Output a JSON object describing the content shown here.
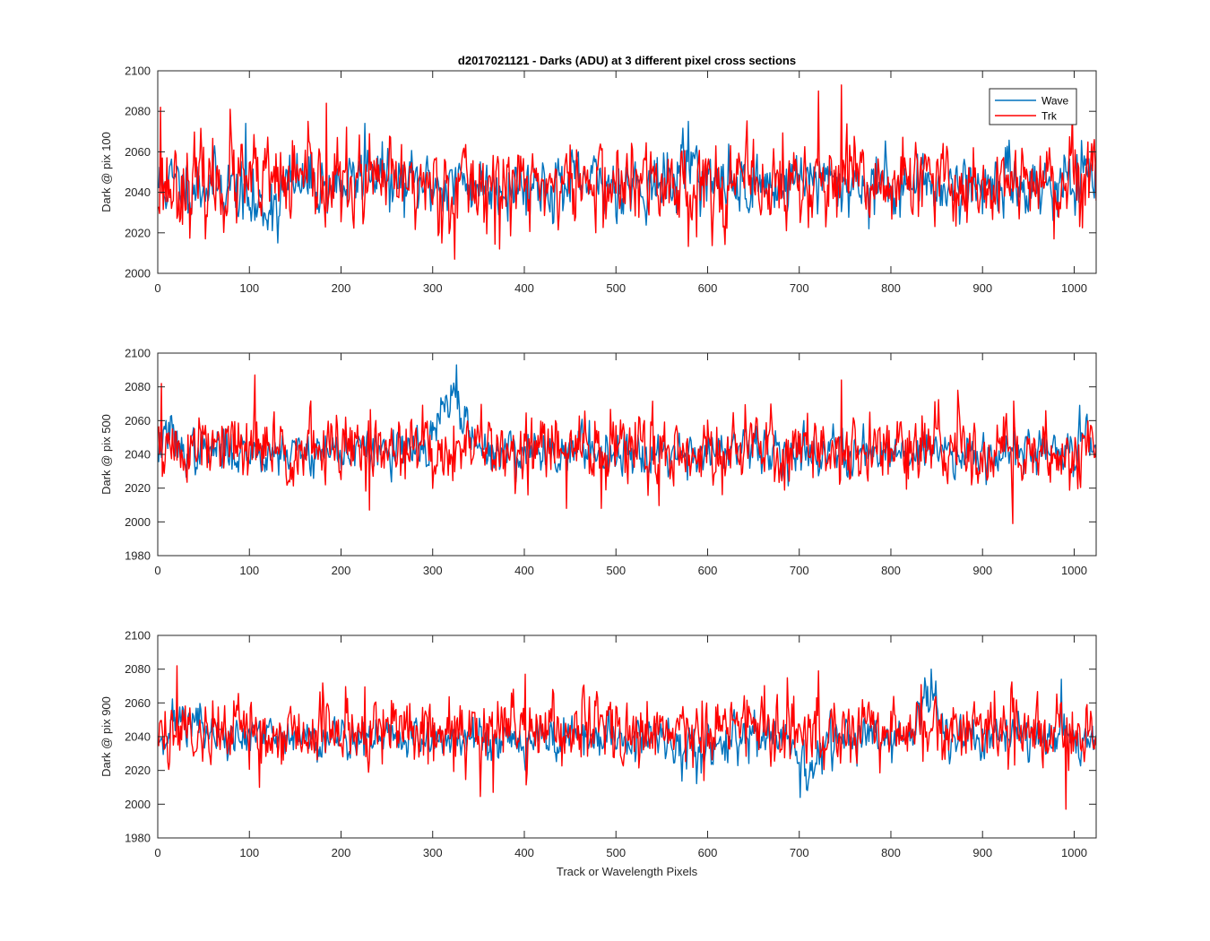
{
  "chart_data": [
    {
      "type": "line",
      "title": "d2017021121 - Darks (ADU) at 3 different pixel cross sections",
      "xlabel": "",
      "ylabel": "Dark @ pix 100",
      "xlim": [
        0,
        1024
      ],
      "ylim": [
        2000,
        2100
      ],
      "xticks": [
        0,
        100,
        200,
        300,
        400,
        500,
        600,
        700,
        800,
        900,
        1000
      ],
      "yticks": [
        2000,
        2020,
        2040,
        2060,
        2080,
        2100
      ],
      "legend": {
        "position": "top-right",
        "entries": [
          "Wave",
          "Trk"
        ]
      },
      "series": [
        {
          "name": "Wave",
          "color": "#0072BD",
          "base": 2044,
          "noise": 7,
          "seed": 11,
          "features": [
            {
              "x0": 80,
              "x1": 140,
              "delta": -12
            },
            {
              "x0": 215,
              "x1": 250,
              "delta": 8
            },
            {
              "x0": 560,
              "x1": 600,
              "delta": 12
            },
            {
              "x0": 690,
              "x1": 720,
              "delta": 6
            }
          ],
          "spikes": [
            [
              95,
              2074
            ],
            [
              130,
              2015
            ],
            [
              225,
              2074
            ],
            [
              578,
              2075
            ],
            [
              775,
              2022
            ],
            [
              945,
              2038
            ],
            [
              1010,
              2058
            ]
          ]
        },
        {
          "name": "Trk",
          "color": "#FF0000",
          "base": 2044,
          "noise": 10,
          "seed": 23,
          "features": [],
          "spikes": [
            [
              2,
              2082
            ],
            [
              78,
              2081
            ],
            [
              183,
              2084
            ],
            [
              323,
              2007
            ],
            [
              372,
              2012
            ],
            [
              720,
              2090
            ],
            [
              745,
              2093
            ],
            [
              977,
              2017
            ],
            [
              1000,
              2061
            ]
          ]
        }
      ]
    },
    {
      "type": "line",
      "title": "",
      "xlabel": "",
      "ylabel": "Dark @ pix 500",
      "xlim": [
        0,
        1024
      ],
      "ylim": [
        1980,
        2100
      ],
      "xticks": [
        0,
        100,
        200,
        300,
        400,
        500,
        600,
        700,
        800,
        900,
        1000
      ],
      "yticks": [
        1980,
        2000,
        2020,
        2040,
        2060,
        2080,
        2100
      ],
      "series": [
        {
          "name": "Wave",
          "color": "#0072BD",
          "base": 2042,
          "noise": 6,
          "seed": 37,
          "features": [
            {
              "x0": 0,
              "x1": 20,
              "delta": 12
            },
            {
              "x0": 295,
              "x1": 345,
              "delta": 30
            },
            {
              "x0": 1000,
              "x1": 1024,
              "delta": 12
            }
          ],
          "spikes": [
            [
              325,
              2093
            ],
            [
              470,
              2060
            ],
            [
              1005,
              2069
            ]
          ]
        },
        {
          "name": "Trk",
          "color": "#FF0000",
          "base": 2043,
          "noise": 10,
          "seed": 51,
          "features": [],
          "spikes": [
            [
              3,
              2082
            ],
            [
              105,
              2087
            ],
            [
              230,
              2007
            ],
            [
              445,
              2008
            ],
            [
              483,
              2008
            ],
            [
              745,
              2084
            ],
            [
              932,
              1999
            ]
          ]
        }
      ]
    },
    {
      "type": "line",
      "title": "",
      "xlabel": "Track or Wavelength Pixels",
      "ylabel": "Dark @ pix 900",
      "xlim": [
        0,
        1024
      ],
      "ylim": [
        1980,
        2100
      ],
      "xticks": [
        0,
        100,
        200,
        300,
        400,
        500,
        600,
        700,
        800,
        900,
        1000
      ],
      "yticks": [
        1980,
        2000,
        2020,
        2040,
        2060,
        2080,
        2100
      ],
      "series": [
        {
          "name": "Wave",
          "color": "#0072BD",
          "base": 2039,
          "noise": 6,
          "seed": 71,
          "features": [
            {
              "x0": 0,
              "x1": 60,
              "delta": 12
            },
            {
              "x0": 540,
              "x1": 620,
              "delta": -8
            },
            {
              "x0": 685,
              "x1": 730,
              "delta": -22
            },
            {
              "x0": 820,
              "x1": 860,
              "delta": 22
            }
          ],
          "spikes": [
            [
              700,
              2004
            ],
            [
              843,
              2080
            ],
            [
              985,
              2074
            ]
          ]
        },
        {
          "name": "Trk",
          "color": "#FF0000",
          "base": 2044,
          "noise": 10,
          "seed": 89,
          "features": [],
          "spikes": [
            [
              20,
              2082
            ],
            [
              110,
              2010
            ],
            [
              365,
              2007
            ],
            [
              400,
              2077
            ],
            [
              720,
              2079
            ],
            [
              990,
              1997
            ]
          ]
        }
      ]
    }
  ]
}
